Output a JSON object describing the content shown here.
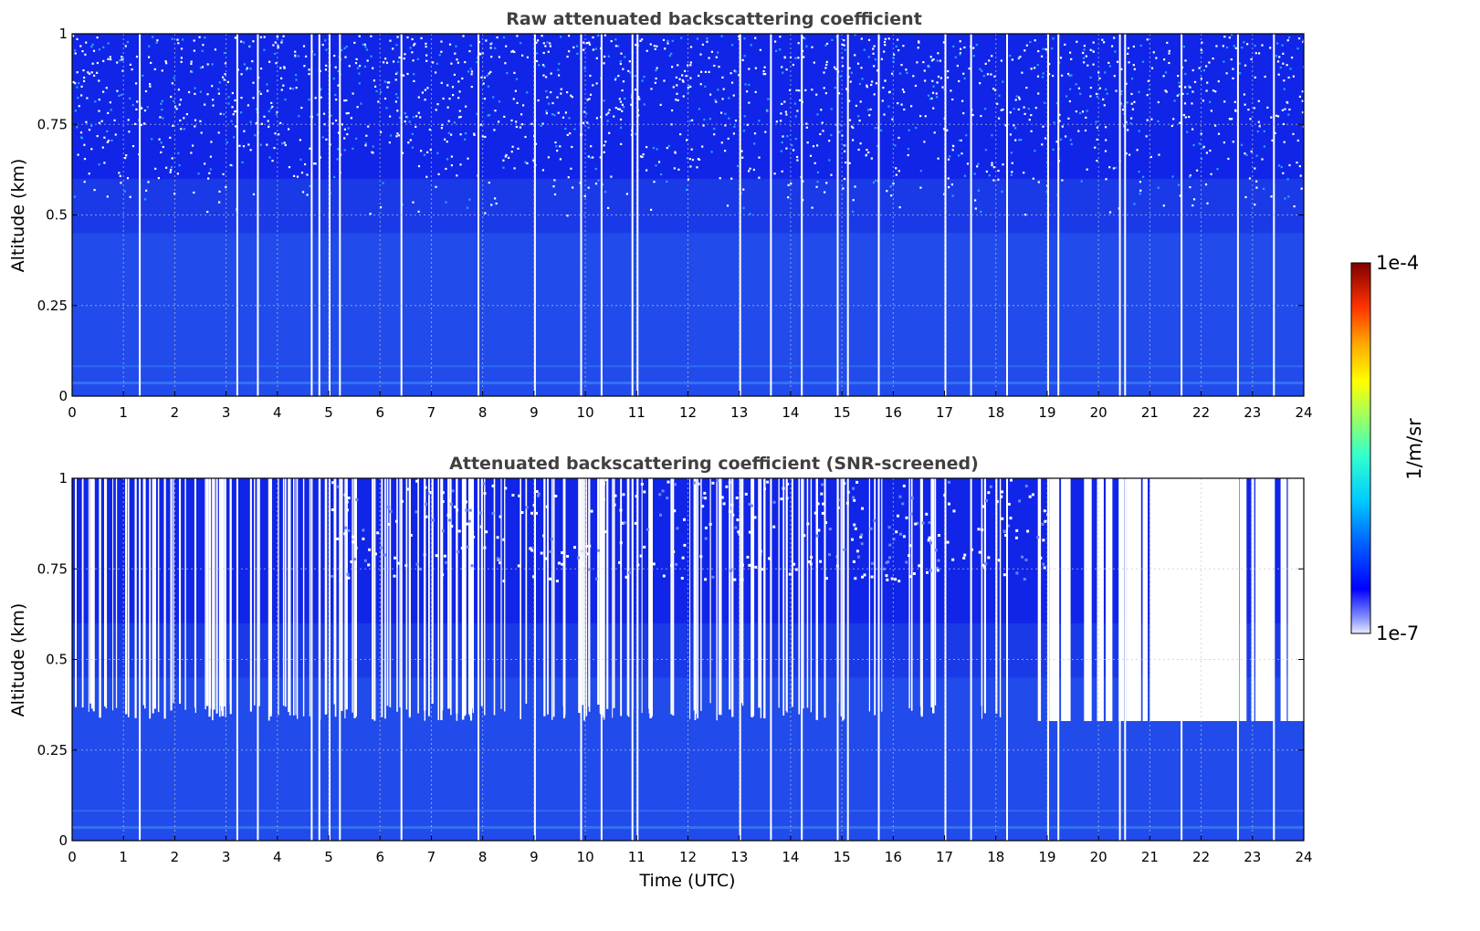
{
  "figure": {
    "xlabel": "Time (UTC)",
    "colorbar": {
      "unit": "1/m/sr",
      "max_label": "1e-4",
      "min_label": "1e-7"
    }
  },
  "chart_data": [
    {
      "type": "heatmap",
      "title": "Raw attenuated backscattering coefficient",
      "xlabel": "",
      "ylabel": "Altitude (km)",
      "xlim": [
        0,
        24
      ],
      "ylim": [
        0,
        1
      ],
      "xticks": [
        "0",
        "1",
        "2",
        "3",
        "4",
        "5",
        "6",
        "7",
        "8",
        "9",
        "10",
        "11",
        "12",
        "13",
        "14",
        "15",
        "16",
        "17",
        "18",
        "19",
        "20",
        "21",
        "22",
        "23",
        "24"
      ],
      "yticks": [
        "0",
        "0.25",
        "0.5",
        "0.75",
        "1"
      ],
      "grid": true,
      "color_scale": "log",
      "zrange": [
        1e-07,
        0.0001
      ],
      "colors": {
        "dense": "#1a3ae8",
        "upper": "#0a14e6",
        "light": "#2b62f0",
        "gap": "#ffffff"
      }
    },
    {
      "type": "heatmap",
      "title": "Attenuated backscattering coefficient (SNR-screened)",
      "xlabel": "Time (UTC)",
      "ylabel": "Altitude (km)",
      "xlim": [
        0,
        24
      ],
      "ylim": [
        0,
        1
      ],
      "xticks": [
        "0",
        "1",
        "2",
        "3",
        "4",
        "5",
        "6",
        "7",
        "8",
        "9",
        "10",
        "11",
        "12",
        "13",
        "14",
        "15",
        "16",
        "17",
        "18",
        "19",
        "20",
        "21",
        "22",
        "23",
        "24"
      ],
      "yticks": [
        "0",
        "0.25",
        "0.5",
        "0.75",
        "1"
      ],
      "grid": true,
      "color_scale": "log",
      "zrange": [
        1e-07,
        0.0001
      ],
      "screening_top_km": 0.33,
      "colors": {
        "dense": "#1a3ae8",
        "upper": "#0a14e6",
        "light": "#2b62f0",
        "gap": "#ffffff"
      }
    }
  ]
}
